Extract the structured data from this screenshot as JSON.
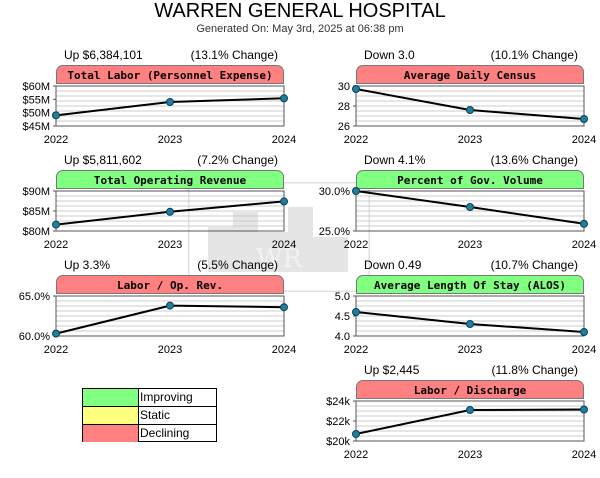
{
  "header": {
    "title": "WARREN GENERAL HOSPITAL",
    "subtitle": "Generated On: May 3rd, 2025 at 06:38 pm"
  },
  "colors": {
    "improving": "#80ff80",
    "static": "#ffff80",
    "declining": "#ff8080"
  },
  "legend": [
    {
      "label": "Improving",
      "status": "improving"
    },
    {
      "label": "Static",
      "status": "static"
    },
    {
      "label": "Declining",
      "status": "declining"
    }
  ],
  "chart_data": [
    {
      "type": "line",
      "title": "Total Labor (Personnel Expense)",
      "status": "declining",
      "change_text": "Up $6,384,101",
      "pct_text": "(13.1% Change)",
      "x": [
        "2022",
        "2023",
        "2024"
      ],
      "values": [
        49000000,
        54000000,
        55400000
      ],
      "ylim": [
        45000000,
        60000000
      ],
      "yticks": [
        "$60M",
        "$55M",
        "$50M",
        "$45M"
      ]
    },
    {
      "type": "line",
      "title": "Average Daily Census",
      "status": "declining",
      "change_text": "Down 3.0",
      "pct_text": "(10.1% Change)",
      "x": [
        "2022",
        "2023",
        "2024"
      ],
      "values": [
        29.7,
        27.6,
        26.7
      ],
      "ylim": [
        26,
        30
      ],
      "yticks": [
        "30",
        "28",
        "26"
      ]
    },
    {
      "type": "line",
      "title": "Total Operating Revenue",
      "status": "improving",
      "change_text": "Up $5,811,602",
      "pct_text": "(7.2% Change)",
      "x": [
        "2022",
        "2023",
        "2024"
      ],
      "values": [
        81600000,
        84800000,
        87400000
      ],
      "ylim": [
        80000000,
        90000000
      ],
      "yticks": [
        "$90M",
        "$85M",
        "$80M"
      ]
    },
    {
      "type": "line",
      "title": "Percent of Gov. Volume",
      "status": "improving",
      "change_text": "Down 4.1%",
      "pct_text": "(13.6% Change)",
      "x": [
        "2022",
        "2023",
        "2024"
      ],
      "values": [
        30.0,
        28.0,
        25.9
      ],
      "ylim": [
        25,
        30
      ],
      "yticks": [
        "30.0%",
        "25.0%"
      ]
    },
    {
      "type": "line",
      "title": "Labor / Op. Rev.",
      "status": "declining",
      "change_text": "Up 3.3%",
      "pct_text": "(5.5% Change)",
      "x": [
        "2022",
        "2023",
        "2024"
      ],
      "values": [
        60.3,
        63.8,
        63.6
      ],
      "ylim": [
        60,
        65
      ],
      "yticks": [
        "65.0%",
        "60.0%"
      ]
    },
    {
      "type": "line",
      "title": "Average Length Of Stay (ALOS)",
      "status": "improving",
      "change_text": "Down 0.49",
      "pct_text": "(10.7% Change)",
      "x": [
        "2022",
        "2023",
        "2024"
      ],
      "values": [
        4.6,
        4.3,
        4.1
      ],
      "ylim": [
        4.0,
        5.0
      ],
      "yticks": [
        "5.0",
        "4.5",
        "4.0"
      ]
    },
    {
      "type": "line",
      "title": "Labor / Discharge",
      "status": "declining",
      "change_text": "Up $2,445",
      "pct_text": "(11.8% Change)",
      "x": [
        "2022",
        "2023",
        "2024"
      ],
      "values": [
        20700,
        23100,
        23150
      ],
      "ylim": [
        20000,
        24000
      ],
      "yticks": [
        "$24k",
        "$22k",
        "$20k"
      ]
    }
  ]
}
